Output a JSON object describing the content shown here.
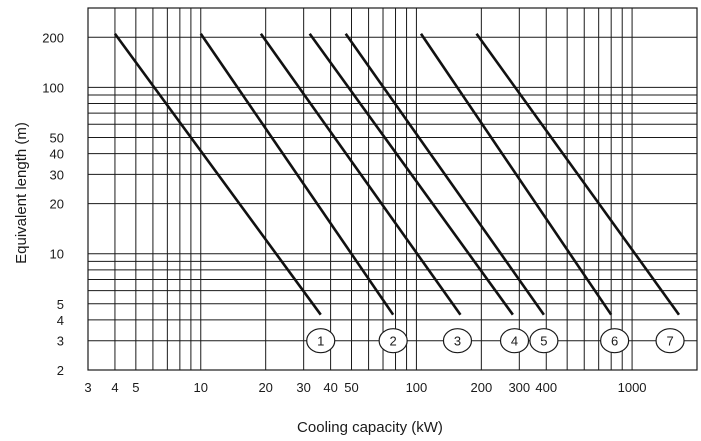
{
  "chart_data": {
    "type": "line",
    "x_scale": "log",
    "y_scale": "log",
    "xlabel": "Cooling capacity (kW)",
    "ylabel": "Equivalent length (m)",
    "xlim": [
      3,
      2000
    ],
    "ylim": [
      2,
      300
    ],
    "grid": true,
    "x_gridlines": [
      4,
      5,
      6,
      7,
      8,
      9,
      10,
      20,
      30,
      40,
      50,
      60,
      70,
      80,
      90,
      100,
      200,
      300,
      400,
      500,
      600,
      700,
      800,
      900,
      1000
    ],
    "y_gridlines": [
      3,
      4,
      5,
      6,
      7,
      8,
      9,
      10,
      20,
      30,
      40,
      50,
      60,
      70,
      80,
      90,
      100,
      200
    ],
    "x_tick_labels": [
      {
        "value": 3,
        "label": "3"
      },
      {
        "value": 4,
        "label": "4"
      },
      {
        "value": 5,
        "label": "5"
      },
      {
        "value": 10,
        "label": "10"
      },
      {
        "value": 20,
        "label": "20"
      },
      {
        "value": 30,
        "label": "30"
      },
      {
        "value": 40,
        "label": "40"
      },
      {
        "value": 50,
        "label": "50"
      },
      {
        "value": 100,
        "label": "100"
      },
      {
        "value": 200,
        "label": "200"
      },
      {
        "value": 300,
        "label": "300"
      },
      {
        "value": 400,
        "label": "400"
      },
      {
        "value": 1000,
        "label": "1000"
      }
    ],
    "y_tick_labels": [
      {
        "value": 2,
        "label": "2"
      },
      {
        "value": 3,
        "label": "3"
      },
      {
        "value": 4,
        "label": "4"
      },
      {
        "value": 5,
        "label": "5"
      },
      {
        "value": 10,
        "label": "10"
      },
      {
        "value": 20,
        "label": "20"
      },
      {
        "value": 30,
        "label": "30"
      },
      {
        "value": 40,
        "label": "40"
      },
      {
        "value": 50,
        "label": "50"
      },
      {
        "value": 100,
        "label": "100"
      },
      {
        "value": 200,
        "label": "200"
      }
    ],
    "series": [
      {
        "label": "1",
        "x": [
          4.0,
          36
        ],
        "y": [
          210,
          4.3
        ],
        "label_x": 36
      },
      {
        "label": "2",
        "x": [
          10.0,
          78
        ],
        "y": [
          210,
          4.3
        ],
        "label_x": 78
      },
      {
        "label": "3",
        "x": [
          19,
          160
        ],
        "y": [
          210,
          4.3
        ],
        "label_x": 155
      },
      {
        "label": "4",
        "x": [
          32,
          280
        ],
        "y": [
          210,
          4.3
        ],
        "label_x": 285
      },
      {
        "label": "5",
        "x": [
          47,
          390
        ],
        "y": [
          210,
          4.3
        ],
        "label_x": 390
      },
      {
        "label": "6",
        "x": [
          105,
          800
        ],
        "y": [
          210,
          4.3
        ],
        "label_x": 830
      },
      {
        "label": "7",
        "x": [
          190,
          1650
        ],
        "y": [
          210,
          4.3
        ],
        "label_x": 1500
      }
    ],
    "marker_y": 3
  }
}
